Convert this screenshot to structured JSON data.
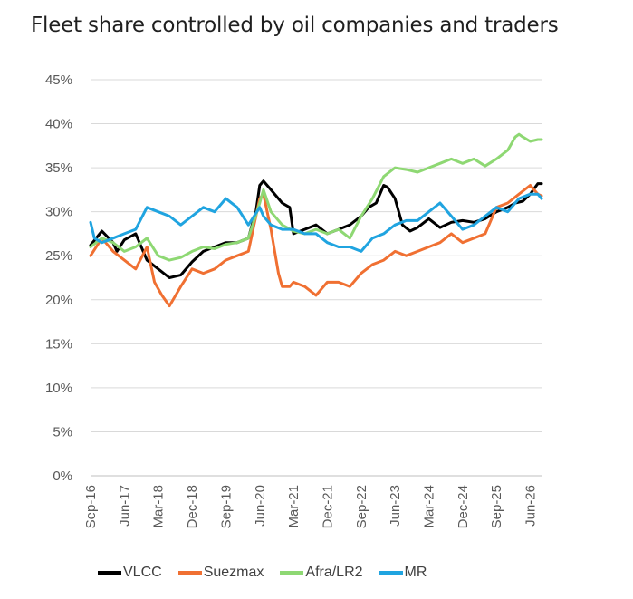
{
  "chart_data": {
    "type": "line",
    "title": "Fleet share controlled by oil companies and traders",
    "xlabel": "",
    "ylabel": "",
    "ylim": [
      0,
      45
    ],
    "yticks": [
      "0%",
      "5%",
      "10%",
      "15%",
      "20%",
      "25%",
      "30%",
      "35%",
      "40%",
      "45%"
    ],
    "xticks": [
      "Sep-16",
      "Jun-17",
      "Mar-18",
      "Dec-18",
      "Sep-19",
      "Jun-20",
      "Mar-21",
      "Dec-21",
      "Sep-22",
      "Jun-23",
      "Mar-24",
      "Dec-24",
      "Sep-25",
      "Jun-26"
    ],
    "x_range": [
      "Sep-16",
      "Sep-26"
    ],
    "legend_position": "bottom",
    "grid": "horizontal",
    "series": [
      {
        "name": "VLCC",
        "color": "#000000",
        "x": [
          "Sep-16",
          "Dec-16",
          "Mar-17",
          "Apr-17",
          "Jun-17",
          "Sep-17",
          "Dec-17",
          "Mar-18",
          "Jun-18",
          "Sep-18",
          "Dec-18",
          "Mar-19",
          "Jun-19",
          "Sep-19",
          "Dec-19",
          "Mar-20",
          "Apr-20",
          "May-20",
          "Jun-20",
          "Jul-20",
          "Sep-20",
          "Dec-20",
          "Feb-21",
          "Mar-21",
          "Jun-21",
          "Sep-21",
          "Dec-21",
          "Mar-22",
          "Jun-22",
          "Sep-22",
          "Nov-22",
          "Jan-23",
          "Mar-23",
          "Apr-23",
          "Jun-23",
          "Aug-23",
          "Oct-23",
          "Dec-23",
          "Mar-24",
          "Jun-24",
          "Sep-24",
          "Dec-24",
          "Mar-25",
          "Jun-25",
          "Sep-25",
          "Dec-25",
          "Feb-26",
          "Apr-26",
          "Jun-26",
          "Aug-26",
          "Sep-26"
        ],
        "values": [
          26.2,
          27.8,
          26.5,
          25.5,
          26.8,
          27.5,
          24.5,
          23.5,
          22.5,
          22.8,
          24.3,
          25.5,
          26.0,
          26.5,
          26.5,
          27.0,
          28.5,
          30.0,
          33.0,
          33.5,
          32.5,
          31.0,
          30.5,
          27.5,
          28.0,
          28.5,
          27.5,
          28.0,
          28.5,
          29.5,
          30.5,
          31.0,
          33.0,
          32.8,
          31.5,
          28.5,
          27.8,
          28.2,
          29.2,
          28.2,
          28.8,
          29.0,
          28.8,
          29.2,
          30.0,
          30.5,
          31.0,
          31.2,
          32.0,
          33.2,
          33.2
        ]
      },
      {
        "name": "Suezmax",
        "color": "#f07032",
        "x": [
          "Sep-16",
          "Dec-16",
          "Mar-17",
          "Jun-17",
          "Sep-17",
          "Dec-17",
          "Feb-18",
          "Apr-18",
          "Jun-18",
          "Sep-18",
          "Dec-18",
          "Mar-19",
          "Jun-19",
          "Sep-19",
          "Dec-19",
          "Mar-20",
          "Jun-20",
          "Jul-20",
          "Sep-20",
          "Nov-20",
          "Dec-20",
          "Feb-21",
          "Mar-21",
          "Jun-21",
          "Sep-21",
          "Nov-21",
          "Dec-21",
          "Mar-22",
          "Jun-22",
          "Sep-22",
          "Dec-22",
          "Mar-23",
          "Jun-23",
          "Sep-23",
          "Dec-23",
          "Mar-24",
          "Jun-24",
          "Sep-24",
          "Dec-24",
          "Mar-25",
          "Jun-25",
          "Sep-25",
          "Dec-25",
          "Mar-26",
          "Jun-26",
          "Aug-26",
          "Sep-26"
        ],
        "values": [
          25.0,
          27.0,
          25.5,
          24.5,
          23.5,
          26.0,
          22.0,
          20.5,
          19.3,
          21.5,
          23.5,
          23.0,
          23.5,
          24.5,
          25.0,
          25.5,
          31.5,
          32.0,
          28.0,
          23.0,
          21.5,
          21.5,
          22.0,
          21.5,
          20.5,
          21.5,
          22.0,
          22.0,
          21.5,
          23.0,
          24.0,
          24.5,
          25.5,
          25.0,
          25.5,
          26.0,
          26.5,
          27.5,
          26.5,
          27.0,
          27.5,
          30.5,
          31.0,
          32.0,
          33.0,
          32.0,
          31.8
        ]
      },
      {
        "name": "Afra/LR2",
        "color": "#8ed873",
        "x": [
          "Sep-16",
          "Dec-16",
          "Mar-17",
          "Jun-17",
          "Sep-17",
          "Dec-17",
          "Mar-18",
          "Jun-18",
          "Sep-18",
          "Dec-18",
          "Mar-19",
          "Jun-19",
          "Sep-19",
          "Dec-19",
          "Mar-20",
          "Jun-20",
          "Jul-20",
          "Sep-20",
          "Dec-20",
          "Mar-21",
          "Jun-21",
          "Sep-21",
          "Dec-21",
          "Mar-22",
          "Jun-22",
          "Sep-22",
          "Dec-22",
          "Mar-23",
          "Jun-23",
          "Sep-23",
          "Dec-23",
          "Mar-24",
          "Jun-24",
          "Sep-24",
          "Dec-24",
          "Mar-25",
          "Jun-25",
          "Sep-25",
          "Dec-25",
          "Feb-26",
          "Mar-26",
          "Apr-26",
          "Jun-26",
          "Aug-26",
          "Sep-26"
        ],
        "values": [
          26.0,
          27.0,
          26.5,
          25.5,
          26.0,
          27.0,
          25.0,
          24.5,
          24.8,
          25.5,
          26.0,
          25.8,
          26.3,
          26.5,
          27.0,
          31.0,
          32.5,
          30.0,
          28.5,
          27.8,
          27.5,
          28.0,
          27.5,
          28.0,
          27.0,
          29.5,
          31.5,
          34.0,
          35.0,
          34.8,
          34.5,
          35.0,
          35.5,
          36.0,
          35.5,
          36.0,
          35.2,
          36.0,
          37.0,
          38.5,
          38.8,
          38.5,
          38.0,
          38.2,
          38.2
        ]
      },
      {
        "name": "MR",
        "color": "#20a4e0",
        "x": [
          "Sep-16",
          "Oct-16",
          "Dec-16",
          "Mar-17",
          "Jun-17",
          "Sep-17",
          "Dec-17",
          "Mar-18",
          "Jun-18",
          "Sep-18",
          "Dec-18",
          "Mar-19",
          "Jun-19",
          "Sep-19",
          "Dec-19",
          "Mar-20",
          "Jun-20",
          "Jul-20",
          "Sep-20",
          "Dec-20",
          "Mar-21",
          "Jun-21",
          "Sep-21",
          "Dec-21",
          "Mar-22",
          "Jun-22",
          "Sep-22",
          "Dec-22",
          "Mar-23",
          "Jun-23",
          "Sep-23",
          "Dec-23",
          "Mar-24",
          "Jun-24",
          "Sep-24",
          "Dec-24",
          "Mar-25",
          "Jun-25",
          "Sep-25",
          "Dec-25",
          "Mar-26",
          "Jun-26",
          "Aug-26",
          "Sep-26"
        ],
        "values": [
          28.8,
          27.0,
          26.5,
          27.0,
          27.5,
          28.0,
          30.5,
          30.0,
          29.5,
          28.5,
          29.5,
          30.5,
          30.0,
          31.5,
          30.5,
          28.5,
          30.5,
          29.5,
          28.5,
          28.0,
          28.0,
          27.5,
          27.5,
          26.5,
          26.0,
          26.0,
          25.5,
          27.0,
          27.5,
          28.5,
          29.0,
          29.0,
          30.0,
          31.0,
          29.5,
          28.0,
          28.5,
          29.5,
          30.5,
          30.0,
          31.5,
          32.0,
          32.0,
          31.5
        ]
      }
    ]
  }
}
